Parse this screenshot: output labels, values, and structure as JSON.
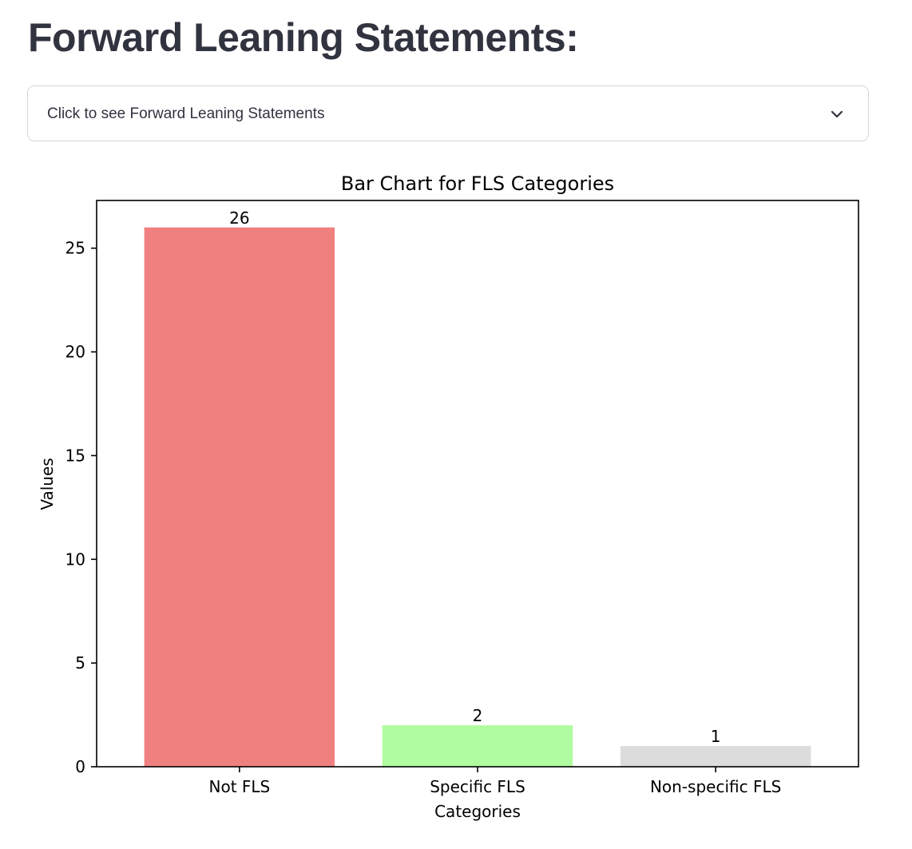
{
  "page": {
    "title": "Forward Leaning Statements:"
  },
  "expander": {
    "label": "Click to see Forward Leaning Statements",
    "icon": "chevron-down-icon"
  },
  "chart_data": {
    "type": "bar",
    "title": "Bar Chart for FLS Categories",
    "xlabel": "Categories",
    "ylabel": "Values",
    "categories": [
      "Not FLS",
      "Specific FLS",
      "Non-specific FLS"
    ],
    "values": [
      26,
      2,
      1
    ],
    "data_labels": [
      "26",
      "2",
      "1"
    ],
    "colors": [
      "#f08080",
      "#b0fca0",
      "#dcdcdc"
    ],
    "ylim": [
      0,
      27.3
    ],
    "yticks": [
      0,
      5,
      10,
      15,
      20,
      25
    ],
    "grid": false,
    "legend": "none"
  }
}
